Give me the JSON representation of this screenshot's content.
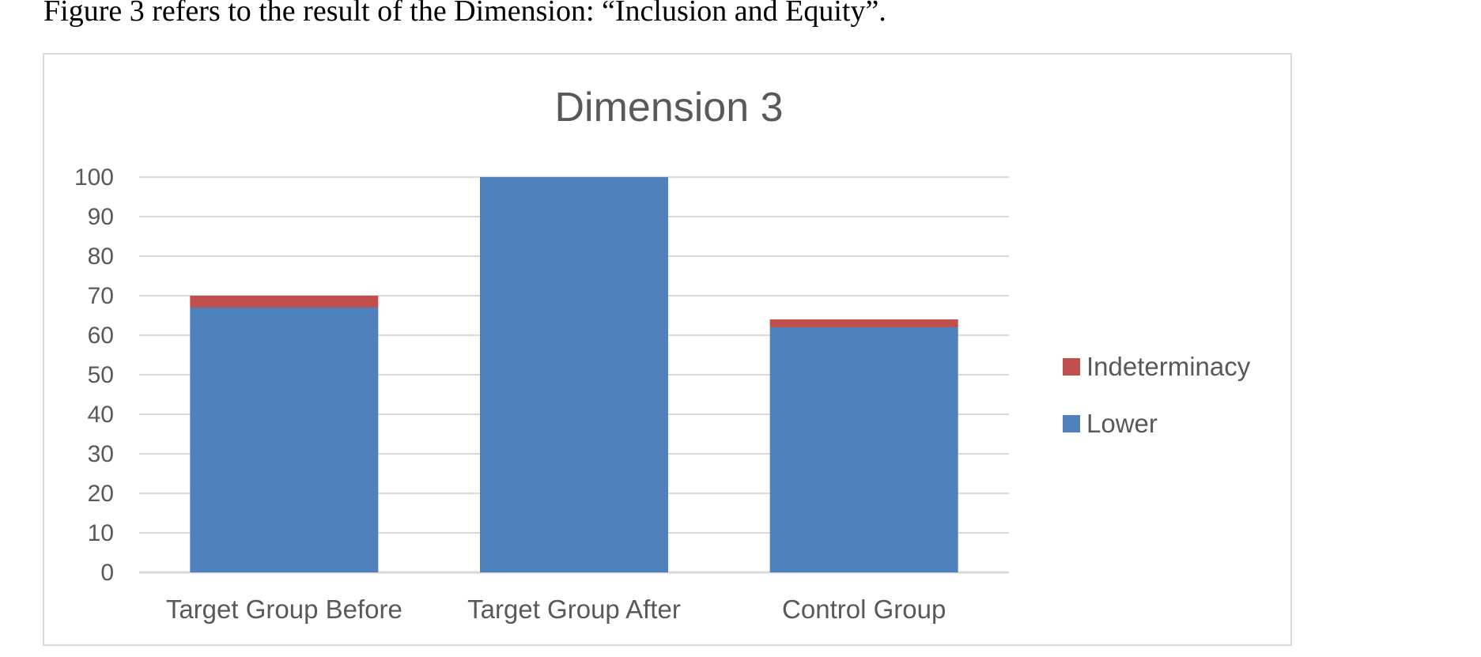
{
  "caption": "Figure 3 refers to the result of the Dimension: “Inclusion and Equity”.",
  "chart_data": {
    "type": "bar",
    "stacked": true,
    "title": "Dimension 3",
    "xlabel": "",
    "ylabel": "",
    "categories": [
      "Target Group Before",
      "Target Group After",
      "Control Group"
    ],
    "series": [
      {
        "name": "Lower",
        "color": "#4f81bd",
        "values": [
          67,
          100,
          62
        ]
      },
      {
        "name": "Indeterminacy",
        "color": "#c0504d",
        "values": [
          3,
          0,
          2
        ]
      }
    ],
    "ylim": [
      0,
      100
    ],
    "yticks": [
      0,
      10,
      20,
      30,
      40,
      50,
      60,
      70,
      80,
      90,
      100
    ],
    "grid": true,
    "gridColor": "#d9d9d9",
    "legend": {
      "position": "right",
      "order": [
        "Indeterminacy",
        "Lower"
      ]
    }
  }
}
